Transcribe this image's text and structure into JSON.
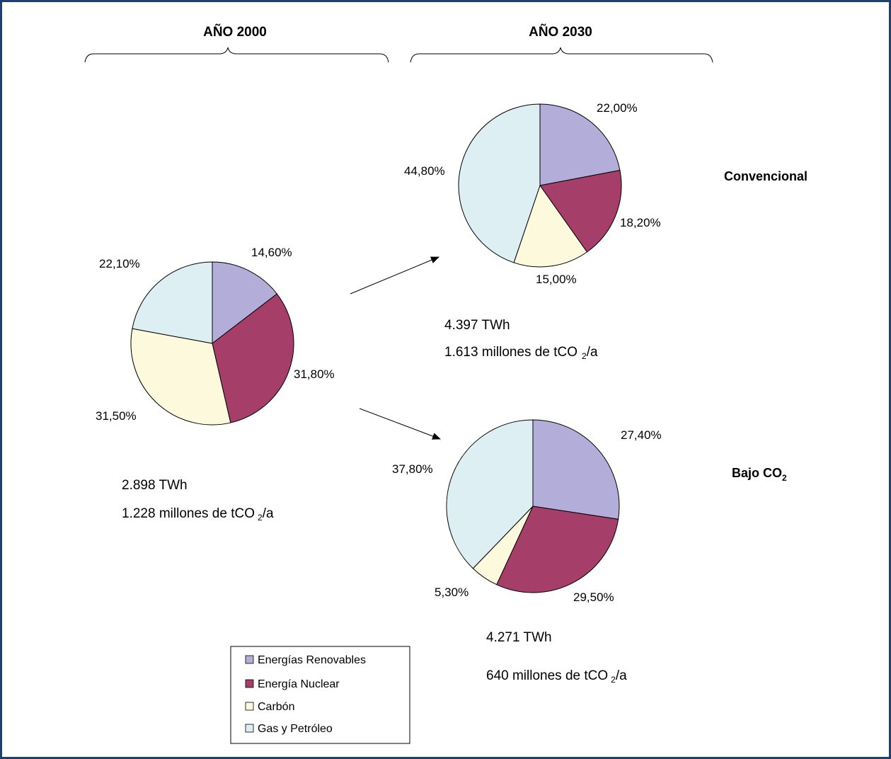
{
  "headers": {
    "year_2000": "AÑO 2000",
    "year_2030": "AÑO 2030"
  },
  "scenarios": {
    "conventional": "Convencional",
    "low_co2_prefix": "Bajo CO",
    "low_co2_sub": "2"
  },
  "info": {
    "y2000_energy": "2.898 TWh",
    "y2000_emissions_a": "1.228 millones de tCO",
    "y2000_emissions_sub": "2",
    "y2000_emissions_b": "/a",
    "conv_energy": "4.397 TWh",
    "conv_emissions_a": "1.613 millones de tCO",
    "conv_emissions_sub": "2",
    "conv_emissions_b": "/a",
    "low_energy": "4.271 TWh",
    "low_emissions_a": "640 millones de tCO",
    "low_emissions_sub": "2",
    "low_emissions_b": "/a"
  },
  "legend": [
    {
      "label": "Energías Renovables",
      "color": "#b3adda"
    },
    {
      "label": "Energía Nuclear",
      "color": "#a63e6a"
    },
    {
      "label": "Carbón",
      "color": "#fcf9dc"
    },
    {
      "label": "Gas y Petróleo",
      "color": "#ddeff2"
    }
  ],
  "chart_data": [
    {
      "type": "pie",
      "title": "AÑO 2000",
      "categories": [
        "Energías Renovables",
        "Energía Nuclear",
        "Carbón",
        "Gas y Petróleo"
      ],
      "values": [
        14.6,
        31.8,
        31.5,
        22.1
      ],
      "labels": [
        "14,60%",
        "31,80%",
        "31,50%",
        "22,10%"
      ]
    },
    {
      "type": "pie",
      "title": "AÑO 2030",
      "subtitle": "Convencional",
      "categories": [
        "Energías Renovables",
        "Energía Nuclear",
        "Carbón",
        "Gas y Petróleo"
      ],
      "values": [
        22.0,
        18.2,
        15.0,
        44.8
      ],
      "labels": [
        "22,00%",
        "18,20%",
        "15,00%",
        "44,80%"
      ]
    },
    {
      "type": "pie",
      "title": "AÑO 2030",
      "subtitle": "Bajo CO2",
      "categories": [
        "Energías Renovables",
        "Energía Nuclear",
        "Carbón",
        "Gas y Petróleo"
      ],
      "values": [
        27.4,
        29.5,
        5.3,
        37.8
      ],
      "labels": [
        "27,40%",
        "29,50%",
        "5,30%",
        "37,80%"
      ]
    }
  ]
}
